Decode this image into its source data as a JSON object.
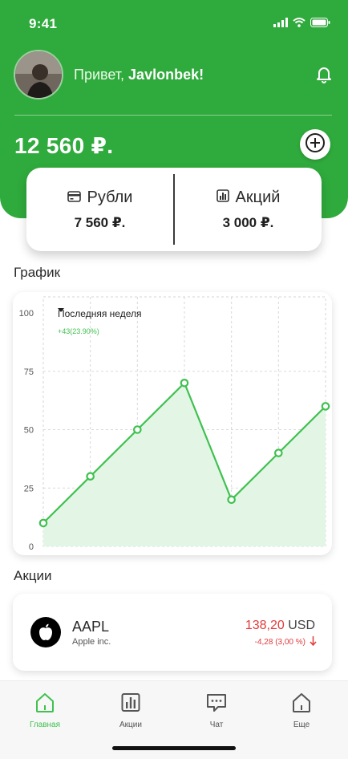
{
  "status_bar": {
    "time": "9:41"
  },
  "header": {
    "greeting_prefix": "Привет,",
    "user_name": "Javlonbek!",
    "balance": "12 560 ₽."
  },
  "balances": [
    {
      "icon": "card-icon",
      "title": "Рубли",
      "value": "7 560 ₽."
    },
    {
      "icon": "bar-chart-icon",
      "title": "Акций",
      "value": "3 000 ₽."
    }
  ],
  "chart_section": {
    "title": "График",
    "range_label": "Последняя неделя",
    "delta": "+43(23.90%)"
  },
  "chart_data": {
    "type": "area",
    "x": [
      1,
      2,
      3,
      4,
      5,
      6,
      7
    ],
    "values": [
      10,
      30,
      50,
      70,
      20,
      40,
      60
    ],
    "ylim": [
      0,
      100
    ],
    "yticks": [
      "0",
      "25",
      "50",
      "75",
      "100"
    ],
    "grid": true,
    "colors": {
      "line": "#40c150",
      "fill": "#e3f6e5"
    }
  },
  "stocks_section": {
    "title": "Акции",
    "items": [
      {
        "ticker": "AAPL",
        "company": "Apple inc.",
        "price": "138,20",
        "currency": "USD",
        "change": "-4,28 (3,00 %)"
      }
    ]
  },
  "tabs": [
    {
      "label": "Главная",
      "icon": "home-icon",
      "active": true
    },
    {
      "label": "Акции",
      "icon": "chart-icon",
      "active": false
    },
    {
      "label": "Чат",
      "icon": "chat-icon",
      "active": false
    },
    {
      "label": "Еще",
      "icon": "more-icon",
      "active": false
    }
  ],
  "colors": {
    "brand_green": "#2faa3c",
    "accent_green": "#40c150",
    "negative_red": "#e23b3b"
  }
}
